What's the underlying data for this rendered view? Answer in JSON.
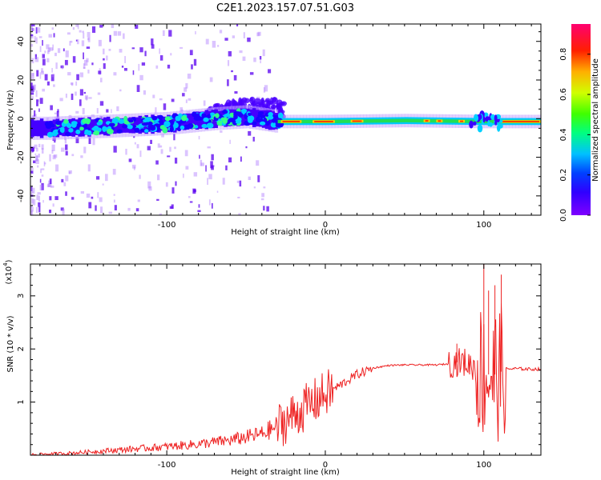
{
  "title": "C2E1.2023.157.07.51.G03",
  "colors": {
    "snr_line": "#ee2222",
    "axis": "#000000",
    "band_core": "#ff2a00",
    "band_mid": "#22dd55",
    "band_edge": "#00c8ff",
    "band_outer": "#3a00ff",
    "speckle": "#5b22ff"
  },
  "chart_data": [
    {
      "type": "heatmap",
      "title": "C2E1.2023.157.07.51.G03",
      "xlabel": "Height of straight line (km)",
      "ylabel": "Frequency (Hz)",
      "xlim": [
        -186,
        136
      ],
      "ylim": [
        -50,
        49
      ],
      "xticks": [
        -100,
        0,
        100
      ],
      "yticks": [
        -40,
        -20,
        0,
        20,
        40
      ],
      "colorbar": {
        "label": "Normalized spectral amplitude",
        "range": [
          0.0,
          0.95
        ],
        "ticks": [
          "0.0",
          "0.2",
          "0.4",
          "0.6",
          "0.8"
        ],
        "colormap": [
          "#6600ff",
          "#0000ff",
          "#00ccff",
          "#00ff66",
          "#66ff00",
          "#ffff00",
          "#ff8800",
          "#ff0000",
          "#ff0066"
        ]
      },
      "band_center_hz": [
        {
          "x": -176,
          "f": -5.0
        },
        {
          "x": -140,
          "f": -4.0
        },
        {
          "x": -100,
          "f": -2.5
        },
        {
          "x": -70,
          "f": 0.0
        },
        {
          "x": -50,
          "f": 1.0
        },
        {
          "x": -30,
          "f": -1.5
        },
        {
          "x": 0,
          "f": -1.5
        },
        {
          "x": 50,
          "f": -1.0
        },
        {
          "x": 100,
          "f": -1.5
        },
        {
          "x": 136,
          "f": -1.5
        }
      ]
    },
    {
      "type": "line",
      "xlabel": "Height of straight line (km)",
      "ylabel": "SNR (10 * v/v)",
      "y_multiplier": "(x10",
      "y_multiplier_exp": "4",
      "xlim": [
        -186,
        136
      ],
      "ylim": [
        0,
        3.6
      ],
      "xticks": [
        -100,
        0,
        100
      ],
      "yticks": [
        1,
        2,
        3
      ],
      "series": [
        {
          "name": "SNR",
          "envelope": {
            "x": [
              -186,
              -160,
              -140,
              -120,
              -100,
              -80,
              -60,
              -40,
              -30,
              -20,
              -10,
              0,
              10,
              20,
              30,
              40,
              50,
              60,
              70,
              78,
              82,
              88,
              95,
              100,
              105,
              110,
              113,
              120,
              130,
              136
            ],
            "y": [
              0.01,
              0.04,
              0.08,
              0.12,
              0.16,
              0.21,
              0.28,
              0.4,
              0.55,
              0.75,
              0.95,
              1.15,
              1.33,
              1.52,
              1.64,
              1.69,
              1.7,
              1.7,
              1.7,
              1.72,
              1.75,
              1.75,
              1.65,
              1.55,
              1.5,
              1.55,
              1.62,
              1.63,
              1.62,
              1.62
            ]
          },
          "peaks": [
            {
              "x": 100,
              "y": 3.6
            },
            {
              "x": 103,
              "y": 3.1
            },
            {
              "x": 107,
              "y": 3.2
            },
            {
              "x": 111,
              "y": 3.4
            },
            {
              "x": 83,
              "y": 2.1
            }
          ]
        }
      ]
    }
  ]
}
